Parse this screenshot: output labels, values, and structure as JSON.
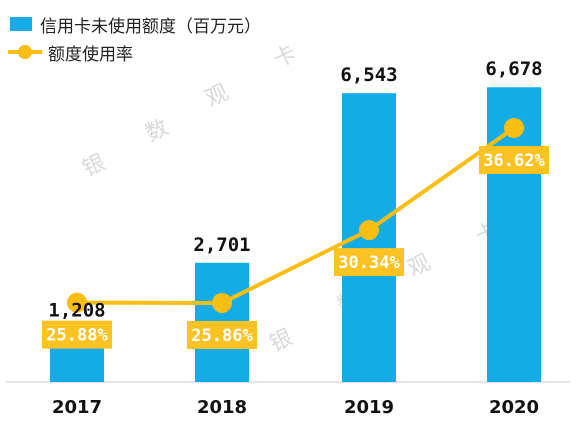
{
  "legend": {
    "bar_label": "信用卡未使用额度（百万元）",
    "line_label": "额度使用率"
  },
  "watermark": "银 数 观 卡",
  "colors": {
    "bar": "#13ace6",
    "line": "#fabd14",
    "label_box": "#fbc223",
    "label_text": "#ffffff",
    "value_text": "#111111",
    "axis": "#c8c8c8"
  },
  "chart_data": {
    "type": "bar",
    "categories": [
      "2017",
      "2018",
      "2019",
      "2020"
    ],
    "series": [
      {
        "name": "信用卡未使用额度（百万元）",
        "type": "bar",
        "values": [
          1208,
          2701,
          6543,
          6678
        ],
        "labels": [
          "1,208",
          "2,701",
          "6,543",
          "6,678"
        ]
      },
      {
        "name": "额度使用率",
        "type": "line",
        "values": [
          25.88,
          25.86,
          30.34,
          36.62
        ],
        "labels": [
          "25.88%",
          "25.86%",
          "30.34%",
          "36.62%"
        ]
      }
    ],
    "bar_ylim": [
      0,
      7000
    ],
    "line_ylim": [
      21,
      40
    ],
    "grid": false,
    "legend_position": "top-left"
  }
}
